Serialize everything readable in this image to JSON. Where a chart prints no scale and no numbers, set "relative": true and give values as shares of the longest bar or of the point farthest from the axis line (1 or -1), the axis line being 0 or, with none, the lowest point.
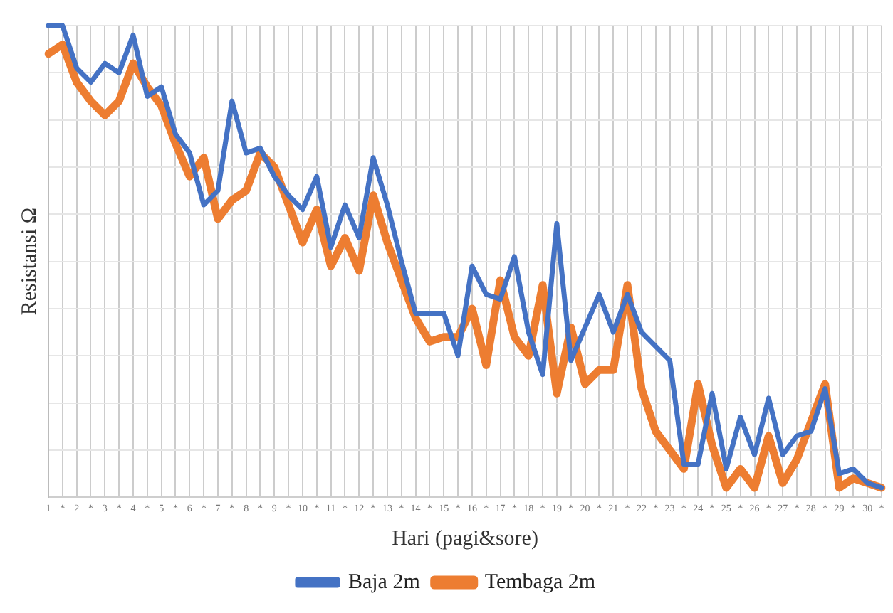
{
  "chart_data": {
    "type": "line",
    "xlabel": "Hari (pagi&sore)",
    "ylabel": "Resistansi Ω",
    "relative": true,
    "grid": true,
    "legend": "bottom",
    "marker": "none",
    "line_style": "solid",
    "categories": [
      "1",
      "*",
      "2",
      "*",
      "3",
      "*",
      "4",
      "*",
      "5",
      "*",
      "6",
      "*",
      "7",
      "*",
      "8",
      "*",
      "9",
      "*",
      "10",
      "*",
      "11",
      "*",
      "12",
      "*",
      "13",
      "*",
      "14",
      "*",
      "15",
      "*",
      "16",
      "*",
      "17",
      "*",
      "18",
      "*",
      "19",
      "*",
      "20",
      "*",
      "21",
      "*",
      "22",
      "*",
      "23",
      "*",
      "24",
      "*",
      "25",
      "*",
      "26",
      "*",
      "27",
      "*",
      "28",
      "*",
      "29",
      "*",
      "30",
      "*"
    ],
    "series": [
      {
        "name": "Baja 2m",
        "color": "#4472c4",
        "values": [
          1.0,
          1.0,
          0.91,
          0.88,
          0.92,
          0.9,
          0.98,
          0.85,
          0.87,
          0.77,
          0.73,
          0.62,
          0.65,
          0.84,
          0.73,
          0.74,
          0.68,
          0.64,
          0.61,
          0.68,
          0.53,
          0.62,
          0.55,
          0.72,
          0.62,
          0.5,
          0.39,
          0.39,
          0.39,
          0.3,
          0.49,
          0.43,
          0.42,
          0.51,
          0.35,
          0.26,
          0.58,
          0.29,
          0.36,
          0.43,
          0.35,
          0.43,
          0.35,
          0.32,
          0.29,
          0.07,
          0.07,
          0.22,
          0.06,
          0.17,
          0.09,
          0.21,
          0.09,
          0.13,
          0.14,
          0.23,
          0.05,
          0.06,
          0.03,
          0.02
        ]
      },
      {
        "name": "Tembaga 2m",
        "color": "#ed7d31",
        "values": [
          0.94,
          0.96,
          0.88,
          0.84,
          0.81,
          0.84,
          0.92,
          0.87,
          0.83,
          0.75,
          0.68,
          0.72,
          0.59,
          0.63,
          0.65,
          0.73,
          0.7,
          0.62,
          0.54,
          0.61,
          0.49,
          0.55,
          0.48,
          0.64,
          0.54,
          0.46,
          0.38,
          0.33,
          0.34,
          0.34,
          0.4,
          0.28,
          0.46,
          0.34,
          0.3,
          0.45,
          0.22,
          0.36,
          0.24,
          0.27,
          0.27,
          0.45,
          0.23,
          0.14,
          0.1,
          0.06,
          0.24,
          0.11,
          0.02,
          0.06,
          0.02,
          0.13,
          0.03,
          0.08,
          0.16,
          0.24,
          0.02,
          0.04,
          0.03,
          0.02
        ]
      }
    ]
  }
}
